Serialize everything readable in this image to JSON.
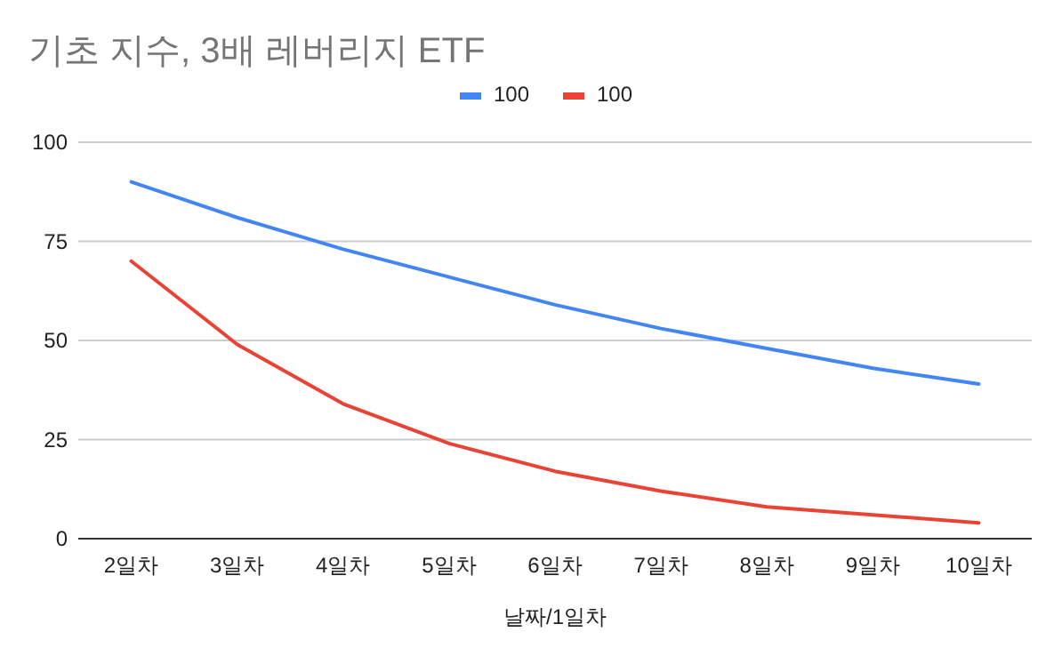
{
  "chart_data": {
    "type": "line",
    "title": "기초 지수, 3배 레버리지 ETF",
    "xlabel": "날짜/1일차",
    "categories": [
      "2일차",
      "3일차",
      "4일차",
      "5일차",
      "6일차",
      "7일차",
      "8일차",
      "9일차",
      "10일차"
    ],
    "series": [
      {
        "name": "100",
        "color": "#4285f4",
        "values": [
          90,
          81,
          73,
          66,
          59,
          53,
          48,
          43,
          39
        ]
      },
      {
        "name": "100",
        "color": "#ea4335",
        "values": [
          70,
          49,
          34,
          24,
          17,
          12,
          8,
          6,
          4
        ]
      }
    ],
    "ylim": [
      0,
      100
    ],
    "yticks": [
      0,
      25,
      50,
      75,
      100
    ],
    "grid": "y",
    "legend": "top"
  }
}
